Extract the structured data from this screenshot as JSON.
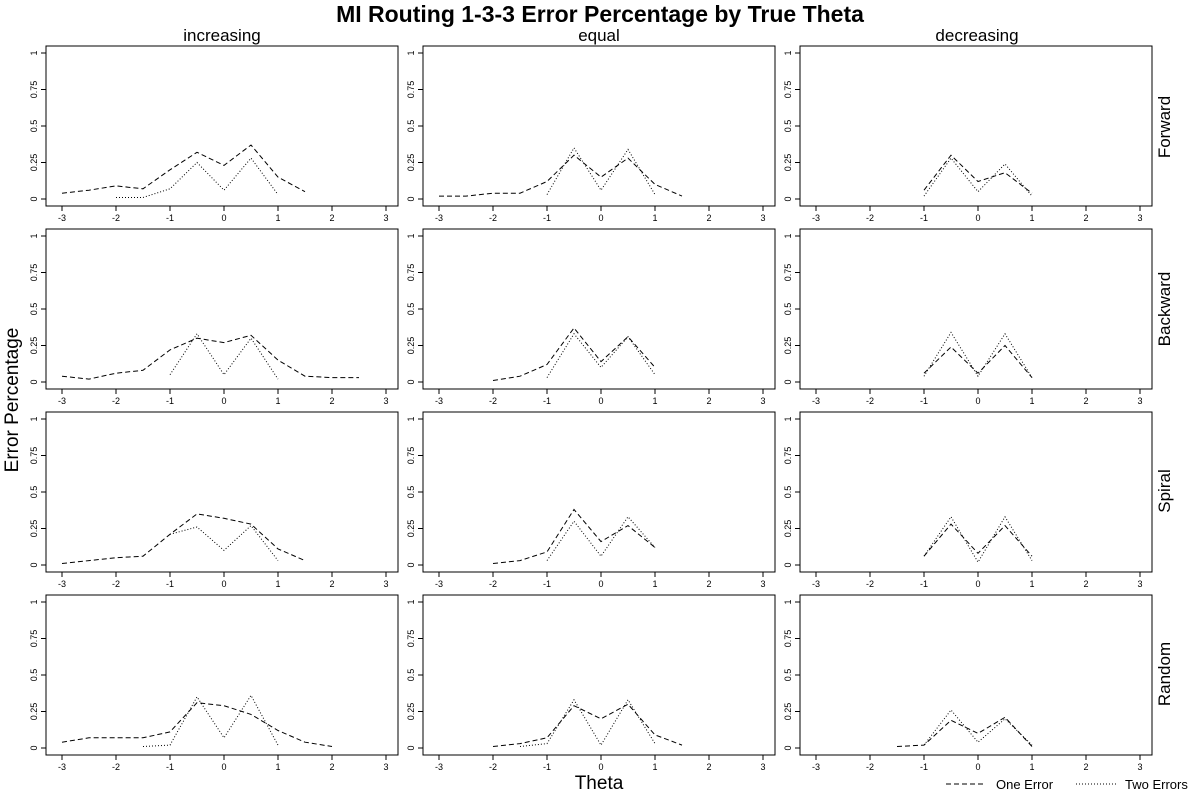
{
  "chart_data": {
    "type": "line",
    "title": "MI Routing 1-3-3 Error Percentage by True Theta",
    "xlabel": "Theta",
    "ylabel": "Error Percentage",
    "xlim": [
      -3,
      3
    ],
    "ylim": [
      0,
      1
    ],
    "x_ticks": [
      "-3",
      "-2",
      "-1",
      "0",
      "1",
      "2",
      "3"
    ],
    "y_ticks": [
      "0",
      "0.25",
      "0.5",
      "0.75",
      "1"
    ],
    "columns": [
      "increasing",
      "equal",
      "decreasing"
    ],
    "rows": [
      "Forward",
      "Backward",
      "Spiral",
      "Random"
    ],
    "legend": [
      {
        "name": "One Error",
        "style": "dashed"
      },
      {
        "name": "Two Errors",
        "style": "dotted"
      }
    ],
    "legend_position": "bottom-right",
    "grid": false,
    "panels": [
      {
        "row": "Forward",
        "column": "increasing",
        "series": [
          {
            "name": "One Error",
            "x": [
              -3,
              -2.5,
              -2,
              -1.5,
              -1,
              -0.5,
              0,
              0.5,
              1,
              1.5
            ],
            "y": [
              0.04,
              0.06,
              0.09,
              0.07,
              0.2,
              0.32,
              0.23,
              0.37,
              0.15,
              0.05
            ]
          },
          {
            "name": "Two Errors",
            "x": [
              -2,
              -1.5,
              -1,
              -0.5,
              0,
              0.5,
              1
            ],
            "y": [
              0.01,
              0.01,
              0.07,
              0.25,
              0.06,
              0.28,
              0.03
            ]
          }
        ]
      },
      {
        "row": "Forward",
        "column": "equal",
        "series": [
          {
            "name": "One Error",
            "x": [
              -3,
              -2.5,
              -2,
              -1.5,
              -1,
              -0.5,
              0,
              0.5,
              1,
              1.5
            ],
            "y": [
              0.02,
              0.02,
              0.04,
              0.04,
              0.12,
              0.3,
              0.15,
              0.28,
              0.1,
              0.02
            ]
          },
          {
            "name": "Two Errors",
            "x": [
              -1,
              -0.5,
              0,
              0.5,
              1
            ],
            "y": [
              0.03,
              0.35,
              0.06,
              0.34,
              0.03
            ]
          }
        ]
      },
      {
        "row": "Forward",
        "column": "decreasing",
        "series": [
          {
            "name": "One Error",
            "x": [
              -1,
              -0.5,
              0,
              0.5,
              1
            ],
            "y": [
              0.06,
              0.3,
              0.12,
              0.18,
              0.04
            ]
          },
          {
            "name": "Two Errors",
            "x": [
              -1,
              -0.5,
              0,
              0.5,
              1
            ],
            "y": [
              0.02,
              0.28,
              0.05,
              0.24,
              0.02
            ]
          }
        ]
      },
      {
        "row": "Backward",
        "column": "increasing",
        "series": [
          {
            "name": "One Error",
            "x": [
              -3,
              -2.5,
              -2,
              -1.5,
              -1,
              -0.5,
              0,
              0.5,
              1,
              1.5,
              2,
              2.5
            ],
            "y": [
              0.04,
              0.02,
              0.06,
              0.08,
              0.22,
              0.3,
              0.27,
              0.32,
              0.15,
              0.04,
              0.03,
              0.03
            ]
          },
          {
            "name": "Two Errors",
            "x": [
              -1,
              -0.5,
              0,
              0.5,
              1
            ],
            "y": [
              0.05,
              0.33,
              0.05,
              0.3,
              0.02
            ]
          }
        ]
      },
      {
        "row": "Backward",
        "column": "equal",
        "series": [
          {
            "name": "One Error",
            "x": [
              -2,
              -1.5,
              -1,
              -0.5,
              0,
              0.5,
              1
            ],
            "y": [
              0.01,
              0.04,
              0.12,
              0.37,
              0.14,
              0.31,
              0.1
            ]
          },
          {
            "name": "Two Errors",
            "x": [
              -1,
              -0.5,
              0,
              0.5,
              1
            ],
            "y": [
              0.03,
              0.33,
              0.1,
              0.31,
              0.05
            ]
          }
        ]
      },
      {
        "row": "Backward",
        "column": "decreasing",
        "series": [
          {
            "name": "One Error",
            "x": [
              -1,
              -0.5,
              0,
              0.5,
              1
            ],
            "y": [
              0.06,
              0.24,
              0.06,
              0.25,
              0.03
            ]
          },
          {
            "name": "Two Errors",
            "x": [
              -1,
              -0.5,
              0,
              0.5,
              1
            ],
            "y": [
              0.04,
              0.34,
              0.04,
              0.33,
              0.03
            ]
          }
        ]
      },
      {
        "row": "Spiral",
        "column": "increasing",
        "series": [
          {
            "name": "One Error",
            "x": [
              -3,
              -2.5,
              -2,
              -1.5,
              -1,
              -0.5,
              0,
              0.5,
              1,
              1.5
            ],
            "y": [
              0.01,
              0.03,
              0.05,
              0.06,
              0.21,
              0.35,
              0.32,
              0.28,
              0.11,
              0.03
            ]
          },
          {
            "name": "Two Errors",
            "x": [
              -1,
              -0.5,
              0,
              0.5,
              1
            ],
            "y": [
              0.21,
              0.26,
              0.1,
              0.27,
              0.03
            ]
          }
        ]
      },
      {
        "row": "Spiral",
        "column": "equal",
        "series": [
          {
            "name": "One Error",
            "x": [
              -2,
              -1.5,
              -1,
              -0.5,
              0,
              0.5,
              1
            ],
            "y": [
              0.01,
              0.03,
              0.09,
              0.38,
              0.16,
              0.27,
              0.12
            ]
          },
          {
            "name": "Two Errors",
            "x": [
              -1,
              -0.5,
              0,
              0.5,
              1
            ],
            "y": [
              0.03,
              0.3,
              0.06,
              0.33,
              0.12
            ]
          }
        ]
      },
      {
        "row": "Spiral",
        "column": "decreasing",
        "series": [
          {
            "name": "One Error",
            "x": [
              -1,
              -0.5,
              0,
              0.5,
              1
            ],
            "y": [
              0.06,
              0.28,
              0.08,
              0.27,
              0.06
            ]
          },
          {
            "name": "Two Errors",
            "x": [
              -1,
              -0.5,
              0,
              0.5,
              1
            ],
            "y": [
              0.06,
              0.33,
              0.02,
              0.33,
              0.03
            ]
          }
        ]
      },
      {
        "row": "Random",
        "column": "increasing",
        "series": [
          {
            "name": "One Error",
            "x": [
              -3,
              -2.5,
              -2,
              -1.5,
              -1,
              -0.5,
              0,
              0.5,
              1,
              1.5,
              2
            ],
            "y": [
              0.04,
              0.07,
              0.07,
              0.07,
              0.11,
              0.31,
              0.29,
              0.23,
              0.12,
              0.04,
              0.01
            ]
          },
          {
            "name": "Two Errors",
            "x": [
              -1.5,
              -1,
              -0.5,
              0,
              0.5,
              1
            ],
            "y": [
              0.01,
              0.02,
              0.35,
              0.07,
              0.36,
              0.02
            ]
          }
        ]
      },
      {
        "row": "Random",
        "column": "equal",
        "series": [
          {
            "name": "One Error",
            "x": [
              -2,
              -1.5,
              -1,
              -0.5,
              0,
              0.5,
              1,
              1.5
            ],
            "y": [
              0.01,
              0.03,
              0.07,
              0.29,
              0.2,
              0.3,
              0.09,
              0.02
            ]
          },
          {
            "name": "Two Errors",
            "x": [
              -1.5,
              -1,
              -0.5,
              0,
              0.5,
              1
            ],
            "y": [
              0.01,
              0.03,
              0.33,
              0.02,
              0.33,
              0.03
            ]
          }
        ]
      },
      {
        "row": "Random",
        "column": "decreasing",
        "series": [
          {
            "name": "One Error",
            "x": [
              -1.5,
              -1,
              -0.5,
              0,
              0.5,
              1
            ],
            "y": [
              0.01,
              0.02,
              0.19,
              0.1,
              0.21,
              0.01
            ]
          },
          {
            "name": "Two Errors",
            "x": [
              -1,
              -0.5,
              0,
              0.5,
              1
            ],
            "y": [
              0.02,
              0.26,
              0.04,
              0.2,
              0.02
            ]
          }
        ]
      }
    ]
  }
}
